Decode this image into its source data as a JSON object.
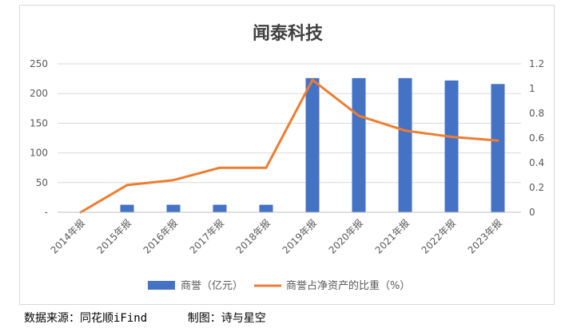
{
  "footer": {
    "source": "数据来源：同花顺iFind",
    "author": "制图：诗与星空"
  },
  "chart_data": {
    "type": "bar",
    "title": "闻泰科技",
    "categories": [
      "2014年报",
      "2015年报",
      "2016年报",
      "2017年报",
      "2018年报",
      "2019年报",
      "2020年报",
      "2021年报",
      "2022年报",
      "2023年报"
    ],
    "series": [
      {
        "name": "商誉（亿元）",
        "type": "bar",
        "axis": "left",
        "color": "#4472c4",
        "values": [
          0,
          12.7,
          12.7,
          12.7,
          12.7,
          226,
          226,
          226,
          222,
          216
        ]
      },
      {
        "name": "商誉占净资产的比重（%）",
        "type": "line",
        "axis": "right",
        "color": "#ed7d31",
        "values": [
          0,
          0.22,
          0.26,
          0.36,
          0.36,
          1.07,
          0.78,
          0.66,
          0.61,
          0.58
        ]
      }
    ],
    "y_left": {
      "ylim": [
        0,
        250
      ],
      "ticks": [
        "-",
        "50",
        "100",
        "150",
        "200",
        "250"
      ]
    },
    "y_right": {
      "ylim": [
        0,
        1.2
      ],
      "ticks": [
        "0",
        "0.2",
        "0.4",
        "0.6",
        "0.8",
        "1",
        "1.2"
      ]
    },
    "grid": true,
    "legend": "bottom"
  }
}
